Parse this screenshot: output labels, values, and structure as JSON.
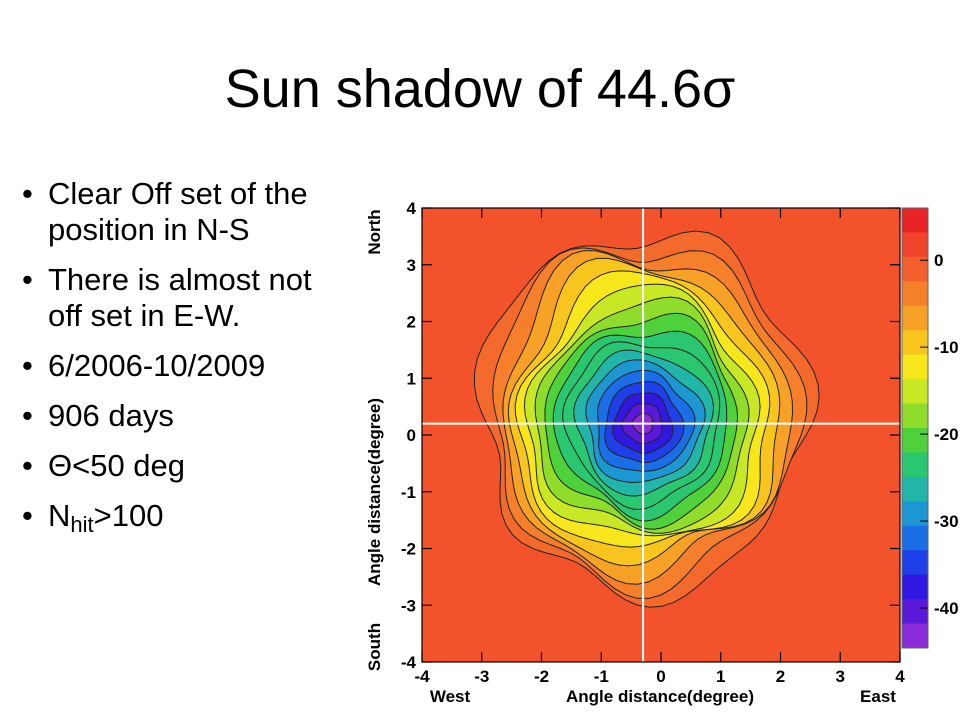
{
  "slide": {
    "title": "Sun shadow of 44.6σ",
    "bullets": [
      {
        "text": "Clear Off set of the position in N-S"
      },
      {
        "text": "There is almost not off set in E-W."
      },
      {
        "text": "6/2006-10/2009"
      },
      {
        "text": "906 days"
      },
      {
        "text": "Θ<50 deg"
      },
      {
        "main": "N",
        "sub": "hit",
        "rest": ">100"
      }
    ]
  },
  "figure": {
    "ylabel": "Angle distance(degree)",
    "xlabel": "Angle distance(degree)",
    "north_label": "North",
    "south_label": "South",
    "west_label": "West",
    "east_label": "East",
    "x_ticks": [
      "-4",
      "-3",
      "-2",
      "-1",
      "0",
      "1",
      "2",
      "3",
      "4"
    ],
    "y_ticks": [
      "4",
      "3",
      "2",
      "1",
      "0",
      "-1",
      "-2",
      "-3",
      "-4"
    ],
    "colorbar_ticks": [
      "0",
      "-10",
      "-20",
      "-30",
      "-40"
    ],
    "xlim": [
      -4,
      4
    ],
    "ylim": [
      -4,
      4
    ],
    "colorbar_range": [
      -44.6,
      6
    ],
    "crosshair": {
      "x": -0.3,
      "y": 0.2
    },
    "center": {
      "x": -0.3,
      "y": 0.2
    },
    "colors": {
      "background": "#f2532a",
      "outer": "#f46a2c",
      "crosshair": "#ffffff",
      "colorbar": [
        "#e82426",
        "#f0452b",
        "#f35f2d",
        "#f57f2b",
        "#f7a126",
        "#f8c51f",
        "#f6e61b",
        "#c8e724",
        "#8fdc2a",
        "#4fd13c",
        "#2bc670",
        "#22b6a8",
        "#1c97d2",
        "#1a6fe6",
        "#1f3fe8",
        "#3018e0",
        "#5a18d8",
        "#8a2ad8"
      ]
    }
  }
}
